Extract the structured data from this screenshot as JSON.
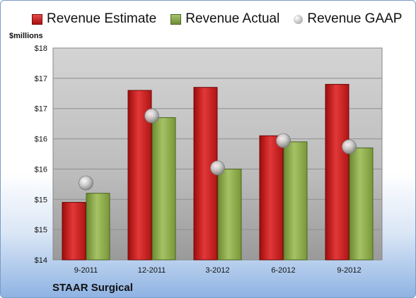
{
  "chart_data": {
    "type": "bar",
    "company": "STAAR Surgical",
    "unit_label": "$millions",
    "categories": [
      "9-2011",
      "12-2011",
      "3-2012",
      "6-2012",
      "9-2012"
    ],
    "y_ticks": [
      "$14",
      "$15",
      "$15",
      "$16",
      "$16",
      "$17",
      "$17",
      "$18"
    ],
    "ylim": [
      14,
      17.5
    ],
    "series": [
      {
        "name": "Revenue Estimate",
        "kind": "bar",
        "color": "#cc1f1f",
        "values": [
          14.95,
          16.8,
          16.85,
          16.05,
          16.9
        ]
      },
      {
        "name": "Revenue Actual",
        "kind": "bar",
        "color": "#8ead4f",
        "values": [
          15.1,
          16.35,
          15.5,
          15.95,
          15.85
        ]
      },
      {
        "name": "Revenue GAAP",
        "kind": "marker",
        "color": "#c8c8c8",
        "values": [
          15.27,
          16.38,
          15.52,
          15.97,
          15.87
        ]
      }
    ],
    "grid": true,
    "legend_position": "top"
  }
}
